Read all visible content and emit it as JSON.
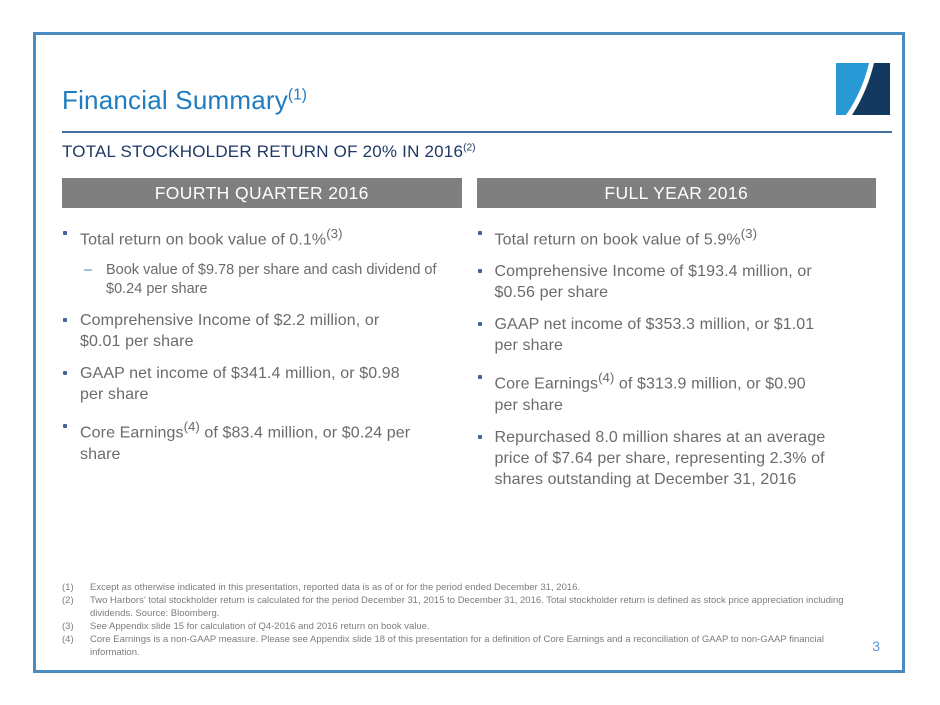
{
  "slide": {
    "title": "Financial Summary",
    "title_superscript": "(1)",
    "subtitle": "TOTAL STOCKHOLDER RETURN OF 20% IN 2016",
    "subtitle_superscript": "(2)",
    "page_number": "3",
    "logo": "two-harbors-logo"
  },
  "columns": [
    {
      "header": "FOURTH QUARTER 2016",
      "bullets": [
        {
          "parts": [
            {
              "text": "Total return on book value of 0.1%"
            },
            {
              "sup": "(3)"
            }
          ],
          "sub_bullets": [
            "Book value of $9.78 per share and cash dividend of\n$0.24 per share"
          ]
        },
        {
          "parts": [
            {
              "text": "Comprehensive Income of $2.2 million, or\n$0.01 per share"
            }
          ]
        },
        {
          "parts": [
            {
              "text": "GAAP net income of $341.4 million, or $0.98\nper share"
            }
          ]
        },
        {
          "parts": [
            {
              "text": "Core Earnings"
            },
            {
              "sup": "(4)"
            },
            {
              "text": " of $83.4 million, or $0.24 per\nshare"
            }
          ]
        }
      ]
    },
    {
      "header": "FULL YEAR 2016",
      "bullets": [
        {
          "parts": [
            {
              "text": "Total return on book value of 5.9%"
            },
            {
              "sup": "(3)"
            }
          ]
        },
        {
          "parts": [
            {
              "text": "Comprehensive Income of $193.4 million, or\n$0.56 per share"
            }
          ]
        },
        {
          "parts": [
            {
              "text": "GAAP net income of $353.3 million, or $1.01\nper share"
            }
          ]
        },
        {
          "parts": [
            {
              "text": "Core Earnings"
            },
            {
              "sup": "(4)"
            },
            {
              "text": " of $313.9 million, or $0.90\nper share"
            }
          ]
        },
        {
          "parts": [
            {
              "text": "Repurchased 8.0 million shares at an average\nprice of $7.64 per share, representing 2.3% of\nshares outstanding at December 31, 2016"
            }
          ]
        }
      ]
    }
  ],
  "footnotes": [
    {
      "num": "(1)",
      "text": "Except as otherwise indicated in this presentation, reported data is as of or for the period ended December 31, 2016."
    },
    {
      "num": "(2)",
      "text": "Two Harbors’ total stockholder return is calculated for the period December 31, 2015 to December 31, 2016.  Total stockholder return is defined as stock price appreciation including\ndividends. Source: Bloomberg."
    },
    {
      "num": "(3)",
      "text": "See Appendix slide 15 for calculation of Q4-2016 and 2016 return on book value."
    },
    {
      "num": "(4)",
      "text": "Core Earnings is a non-GAAP measure.  Please see Appendix slide 18 of this presentation for a definition of Core Earnings and a reconciliation of GAAP to non-GAAP financial information."
    }
  ],
  "colors": {
    "accent-blue": "#1e7cc0",
    "navy": "#1f3864",
    "bar-gray": "#7f7f7f",
    "body-gray": "#6b6b6b",
    "border-blue": "#4a8bc2",
    "rule-blue": "#41719c",
    "footnote-gray": "#7c7c7c",
    "page-blue": "#5b9bd5",
    "bullet-blue": "#44639c",
    "dash-blue": "#4a7ebb",
    "logo-light": "#2799d4",
    "logo-dark": "#14395f"
  }
}
